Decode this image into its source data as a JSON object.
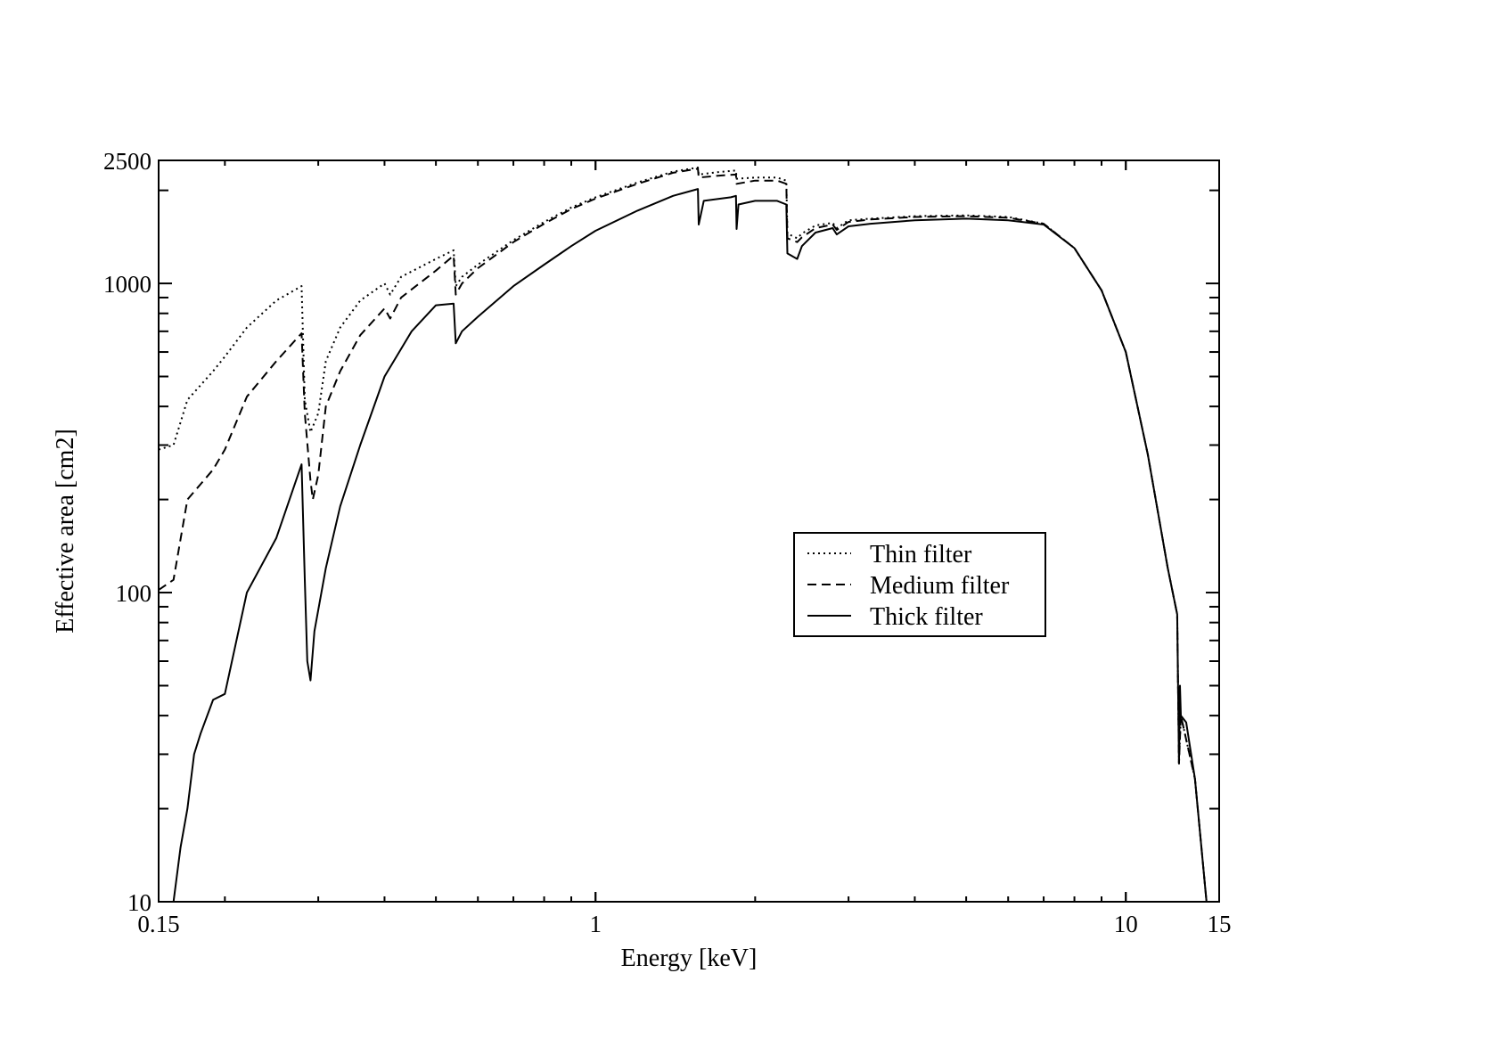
{
  "chart_data": {
    "type": "line",
    "title": "",
    "xlabel": "Energy [keV]",
    "ylabel": "Effective area [cm2]",
    "x_scale": "log",
    "y_scale": "log",
    "xlim": [
      0.15,
      15
    ],
    "ylim": [
      10,
      2500
    ],
    "x_tick_labels": [
      "0.15",
      "1",
      "10",
      "15"
    ],
    "x_tick_values": [
      0.15,
      1,
      10,
      15
    ],
    "y_tick_labels": [
      "10",
      "100",
      "1000",
      "2500"
    ],
    "y_tick_values": [
      10,
      100,
      1000,
      2500
    ],
    "grid": false,
    "legend_position": "center-right",
    "series": [
      {
        "name": "Thin filter",
        "line_style": "dotted",
        "color": "#000000",
        "points": [
          [
            0.15,
            290
          ],
          [
            0.16,
            300
          ],
          [
            0.17,
            420
          ],
          [
            0.19,
            520
          ],
          [
            0.2,
            580
          ],
          [
            0.22,
            720
          ],
          [
            0.25,
            880
          ],
          [
            0.279,
            980
          ],
          [
            0.283,
            420
          ],
          [
            0.29,
            330
          ],
          [
            0.3,
            380
          ],
          [
            0.31,
            560
          ],
          [
            0.33,
            720
          ],
          [
            0.36,
            880
          ],
          [
            0.4,
            1000
          ],
          [
            0.41,
            920
          ],
          [
            0.43,
            1050
          ],
          [
            0.5,
            1200
          ],
          [
            0.54,
            1280
          ],
          [
            0.545,
            980
          ],
          [
            0.56,
            1050
          ],
          [
            0.6,
            1150
          ],
          [
            0.7,
            1380
          ],
          [
            0.8,
            1580
          ],
          [
            0.9,
            1760
          ],
          [
            1.0,
            1900
          ],
          [
            1.2,
            2120
          ],
          [
            1.4,
            2300
          ],
          [
            1.56,
            2370
          ],
          [
            1.565,
            2250
          ],
          [
            1.7,
            2290
          ],
          [
            1.84,
            2320
          ],
          [
            1.845,
            2180
          ],
          [
            2.0,
            2200
          ],
          [
            2.2,
            2200
          ],
          [
            2.29,
            2150
          ],
          [
            2.3,
            1450
          ],
          [
            2.4,
            1400
          ],
          [
            2.45,
            1450
          ],
          [
            2.6,
            1540
          ],
          [
            2.8,
            1570
          ],
          [
            2.85,
            1510
          ],
          [
            3.0,
            1600
          ],
          [
            3.3,
            1620
          ],
          [
            4.0,
            1650
          ],
          [
            5.0,
            1660
          ],
          [
            6.0,
            1640
          ],
          [
            7.0,
            1560
          ],
          [
            8.0,
            1300
          ],
          [
            9.0,
            950
          ],
          [
            10.0,
            600
          ],
          [
            11.0,
            280
          ],
          [
            12.0,
            120
          ],
          [
            12.5,
            85
          ],
          [
            12.6,
            28
          ],
          [
            12.7,
            40
          ],
          [
            13.5,
            25
          ],
          [
            14.2,
            10
          ]
        ]
      },
      {
        "name": "Medium filter",
        "line_style": "dashed",
        "color": "#000000",
        "points": [
          [
            0.15,
            102
          ],
          [
            0.16,
            110
          ],
          [
            0.17,
            200
          ],
          [
            0.19,
            250
          ],
          [
            0.2,
            290
          ],
          [
            0.22,
            430
          ],
          [
            0.25,
            560
          ],
          [
            0.279,
            690
          ],
          [
            0.283,
            380
          ],
          [
            0.29,
            230
          ],
          [
            0.293,
            200
          ],
          [
            0.3,
            240
          ],
          [
            0.31,
            400
          ],
          [
            0.33,
            520
          ],
          [
            0.36,
            680
          ],
          [
            0.4,
            830
          ],
          [
            0.41,
            770
          ],
          [
            0.43,
            900
          ],
          [
            0.5,
            1100
          ],
          [
            0.54,
            1230
          ],
          [
            0.545,
            920
          ],
          [
            0.56,
            1000
          ],
          [
            0.6,
            1120
          ],
          [
            0.7,
            1360
          ],
          [
            0.8,
            1560
          ],
          [
            0.9,
            1740
          ],
          [
            1.0,
            1880
          ],
          [
            1.2,
            2100
          ],
          [
            1.4,
            2280
          ],
          [
            1.56,
            2350
          ],
          [
            1.565,
            2200
          ],
          [
            1.7,
            2230
          ],
          [
            1.84,
            2250
          ],
          [
            1.845,
            2100
          ],
          [
            2.0,
            2150
          ],
          [
            2.2,
            2150
          ],
          [
            2.29,
            2100
          ],
          [
            2.3,
            1400
          ],
          [
            2.4,
            1360
          ],
          [
            2.45,
            1410
          ],
          [
            2.6,
            1510
          ],
          [
            2.8,
            1550
          ],
          [
            2.85,
            1490
          ],
          [
            3.0,
            1580
          ],
          [
            3.3,
            1610
          ],
          [
            4.0,
            1640
          ],
          [
            5.0,
            1650
          ],
          [
            6.0,
            1630
          ],
          [
            7.0,
            1560
          ],
          [
            8.0,
            1300
          ],
          [
            9.0,
            950
          ],
          [
            10.0,
            600
          ],
          [
            11.0,
            280
          ],
          [
            12.0,
            120
          ],
          [
            12.5,
            85
          ],
          [
            12.6,
            28
          ],
          [
            12.7,
            40
          ],
          [
            13.5,
            25
          ],
          [
            14.2,
            10
          ]
        ]
      },
      {
        "name": "Thick filter",
        "line_style": "solid",
        "color": "#000000",
        "points": [
          [
            0.16,
            10
          ],
          [
            0.165,
            15
          ],
          [
            0.17,
            20
          ],
          [
            0.175,
            30
          ],
          [
            0.18,
            35
          ],
          [
            0.19,
            45
          ],
          [
            0.2,
            47
          ],
          [
            0.22,
            100
          ],
          [
            0.25,
            150
          ],
          [
            0.279,
            260
          ],
          [
            0.283,
            110
          ],
          [
            0.286,
            60
          ],
          [
            0.29,
            52
          ],
          [
            0.295,
            75
          ],
          [
            0.31,
            120
          ],
          [
            0.33,
            190
          ],
          [
            0.36,
            300
          ],
          [
            0.4,
            500
          ],
          [
            0.45,
            700
          ],
          [
            0.5,
            850
          ],
          [
            0.54,
            860
          ],
          [
            0.545,
            640
          ],
          [
            0.56,
            700
          ],
          [
            0.6,
            780
          ],
          [
            0.7,
            980
          ],
          [
            0.8,
            1150
          ],
          [
            0.9,
            1320
          ],
          [
            1.0,
            1480
          ],
          [
            1.2,
            1720
          ],
          [
            1.4,
            1920
          ],
          [
            1.56,
            2020
          ],
          [
            1.565,
            1550
          ],
          [
            1.6,
            1850
          ],
          [
            1.8,
            1900
          ],
          [
            1.84,
            1920
          ],
          [
            1.845,
            1500
          ],
          [
            1.86,
            1800
          ],
          [
            2.0,
            1850
          ],
          [
            2.2,
            1850
          ],
          [
            2.29,
            1800
          ],
          [
            2.3,
            1250
          ],
          [
            2.4,
            1200
          ],
          [
            2.45,
            1320
          ],
          [
            2.6,
            1460
          ],
          [
            2.8,
            1510
          ],
          [
            2.85,
            1440
          ],
          [
            3.0,
            1530
          ],
          [
            3.3,
            1560
          ],
          [
            4.0,
            1600
          ],
          [
            5.0,
            1620
          ],
          [
            6.0,
            1600
          ],
          [
            7.0,
            1550
          ],
          [
            8.0,
            1300
          ],
          [
            9.0,
            950
          ],
          [
            10.0,
            600
          ],
          [
            11.0,
            280
          ],
          [
            12.0,
            120
          ],
          [
            12.5,
            85
          ],
          [
            12.6,
            28
          ],
          [
            12.65,
            50
          ],
          [
            12.7,
            40
          ],
          [
            13.0,
            38
          ],
          [
            13.5,
            25
          ],
          [
            14.2,
            10
          ]
        ]
      }
    ]
  }
}
